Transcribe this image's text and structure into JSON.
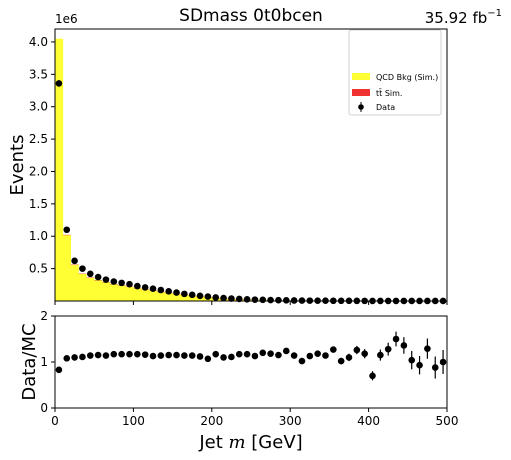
{
  "figure": {
    "title": "SDmass  0t0bcen",
    "lumi_value": "35.92 fb",
    "lumi_exp": "−1",
    "xlabel_prefix": "Jet ",
    "xlabel_var": "m",
    "xlabel_suffix": " [GeV]",
    "colors": {
      "qcd": "#ffff33",
      "ttbar": "#f03232",
      "data": "#000000"
    }
  },
  "chart_data": [
    {
      "type": "bar",
      "panel": "main",
      "ylabel": "Events",
      "y_multiplier": "1e6",
      "xlim": [
        0,
        500
      ],
      "ylim": [
        0,
        4.2
      ],
      "yticks": [
        0.5,
        1.0,
        1.5,
        2.0,
        2.5,
        3.0,
        3.5,
        4.0
      ],
      "ytick_labels": [
        "0.5",
        "1.0",
        "1.5",
        "2.0",
        "2.5",
        "3.0",
        "3.5",
        "4.0"
      ],
      "xticks": [
        0,
        100,
        200,
        300,
        400,
        500
      ],
      "bin_edges": [
        0,
        10,
        20,
        30,
        40,
        50,
        60,
        70,
        80,
        90,
        100,
        110,
        120,
        130,
        140,
        150,
        160,
        170,
        180,
        190,
        200,
        210,
        220,
        230,
        240,
        250,
        260,
        270,
        280,
        290,
        300,
        310,
        320,
        330,
        340,
        350,
        360,
        370,
        380,
        390,
        400,
        410,
        420,
        430,
        440,
        450,
        460,
        470,
        480,
        490,
        500
      ],
      "series": [
        {
          "name": "QCD Bkg (Sim.)",
          "values": [
            4.05,
            1.02,
            0.56,
            0.42,
            0.36,
            0.32,
            0.29,
            0.26,
            0.24,
            0.22,
            0.2,
            0.18,
            0.16,
            0.14,
            0.125,
            0.11,
            0.095,
            0.08,
            0.07,
            0.06,
            0.048,
            0.04,
            0.033,
            0.027,
            0.022,
            0.018,
            0.015,
            0.012,
            0.01,
            0.008,
            0.007,
            0.006,
            0.005,
            0.004,
            0.0035,
            0.003,
            0.0025,
            0.002,
            0.0018,
            0.0015,
            0.0013,
            0.0011,
            0.001,
            0.0009,
            0.0008,
            0.0007,
            0.0006,
            0.0005,
            0.0005,
            0.0004
          ]
        },
        {
          "name": "tt̄ Sim.",
          "values": [
            0.0,
            0.002,
            0.002,
            0.002,
            0.002,
            0.002,
            0.002,
            0.002,
            0.002,
            0.002,
            0.002,
            0.002,
            0.002,
            0.002,
            0.002,
            0.001,
            0.001,
            0.001,
            0.001,
            0.001,
            0.001,
            0.001,
            0.001,
            0.001,
            0.001,
            0.0,
            0.0,
            0.0,
            0.0,
            0.0,
            0.0,
            0.0,
            0.0,
            0.0,
            0.0,
            0.0,
            0.0,
            0.0,
            0.0,
            0.0,
            0.0,
            0.0,
            0.0,
            0.0,
            0.0,
            0.0,
            0.0,
            0.0,
            0.0,
            0.0
          ]
        },
        {
          "name": "Data",
          "values": [
            3.36,
            1.1,
            0.62,
            0.5,
            0.42,
            0.37,
            0.33,
            0.3,
            0.28,
            0.26,
            0.23,
            0.21,
            0.19,
            0.17,
            0.15,
            0.13,
            0.11,
            0.095,
            0.08,
            0.068,
            0.055,
            0.046,
            0.038,
            0.032,
            0.026,
            0.021,
            0.018,
            0.014,
            0.012,
            0.01,
            0.008,
            0.0066,
            0.0056,
            0.0047,
            0.0042,
            0.0036,
            0.003,
            0.0026,
            0.0022,
            0.0018,
            0.0015,
            0.0013,
            0.0011,
            0.001,
            0.0009,
            0.0008,
            0.0007,
            0.0006,
            0.0005,
            0.0004
          ]
        }
      ],
      "legend": {
        "placement": "top-right",
        "entries": [
          {
            "label": "QCD Bkg (Sim.)",
            "kind": "fill",
            "color": "#ffff33"
          },
          {
            "label": "tt̄ Sim.",
            "kind": "fill",
            "color": "#f03232"
          },
          {
            "label": "Data",
            "kind": "marker",
            "color": "#000000"
          }
        ]
      }
    },
    {
      "type": "scatter",
      "panel": "ratio",
      "ylabel": "Data/MC",
      "xlabel": "Jet m [GeV]",
      "xlim": [
        0,
        500
      ],
      "ylim": [
        0,
        2
      ],
      "yticks": [
        0,
        1,
        2
      ],
      "ytick_labels": [
        "0",
        "1",
        "2"
      ],
      "xticks": [
        0,
        100,
        200,
        300,
        400,
        500
      ],
      "xtick_labels": [
        "0",
        "100",
        "200",
        "300",
        "400",
        "500"
      ],
      "x": [
        5,
        15,
        25,
        35,
        45,
        55,
        65,
        75,
        85,
        95,
        105,
        115,
        125,
        135,
        145,
        155,
        165,
        175,
        185,
        195,
        205,
        215,
        225,
        235,
        245,
        255,
        265,
        275,
        285,
        295,
        305,
        315,
        325,
        335,
        345,
        355,
        365,
        375,
        385,
        395,
        405,
        415,
        425,
        435,
        445,
        455,
        465,
        475,
        485,
        495
      ],
      "y": [
        0.83,
        1.08,
        1.1,
        1.11,
        1.14,
        1.15,
        1.14,
        1.17,
        1.17,
        1.17,
        1.17,
        1.16,
        1.13,
        1.14,
        1.15,
        1.15,
        1.14,
        1.14,
        1.12,
        1.07,
        1.17,
        1.1,
        1.11,
        1.17,
        1.17,
        1.13,
        1.2,
        1.18,
        1.15,
        1.24,
        1.14,
        1.02,
        1.13,
        1.18,
        1.14,
        1.27,
        1.02,
        1.1,
        1.26,
        1.18,
        0.7,
        1.15,
        1.28,
        1.5,
        1.36,
        1.04,
        0.93,
        1.29,
        0.88,
        1.0
      ],
      "yerr": [
        0.0,
        0.0,
        0.0,
        0.0,
        0.0,
        0.0,
        0.0,
        0.0,
        0.0,
        0.0,
        0.0,
        0.0,
        0.0,
        0.0,
        0.0,
        0.0,
        0.0,
        0.0,
        0.0,
        0.0,
        0.0,
        0.0,
        0.0,
        0.0,
        0.0,
        0.0,
        0.0,
        0.0,
        0.0,
        0.02,
        0.03,
        0.03,
        0.04,
        0.04,
        0.05,
        0.06,
        0.07,
        0.08,
        0.09,
        0.1,
        0.1,
        0.12,
        0.14,
        0.16,
        0.18,
        0.2,
        0.2,
        0.22,
        0.24,
        0.26
      ]
    }
  ]
}
